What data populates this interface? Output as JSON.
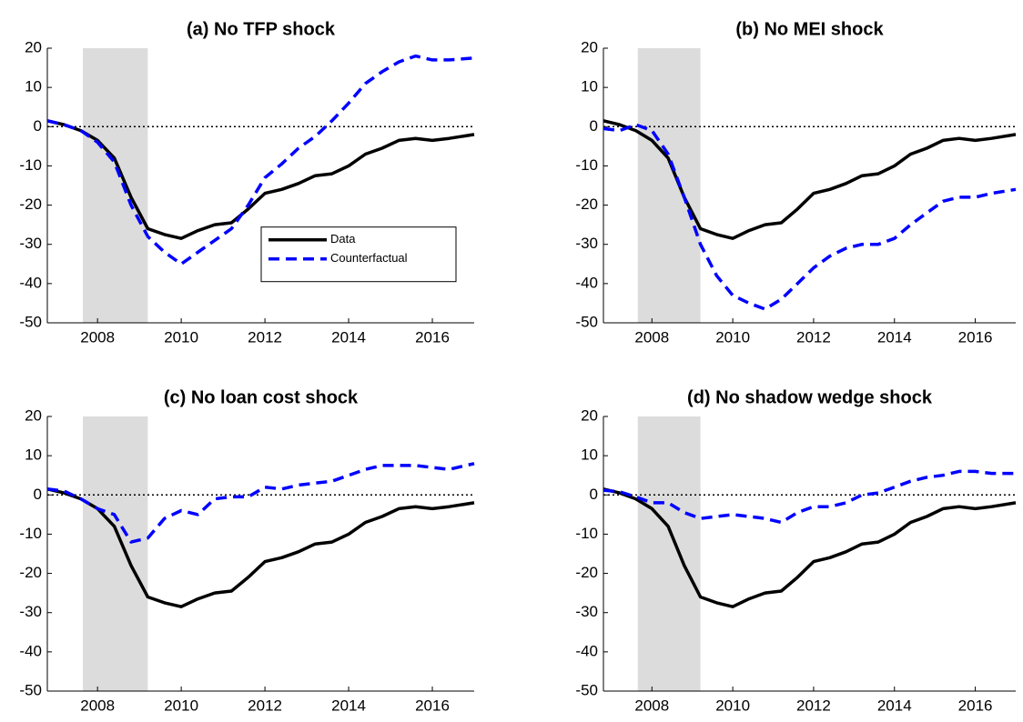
{
  "chart_data": [
    {
      "type": "line",
      "title": "(a) No TFP shock",
      "x": [
        2006.8,
        2007.2,
        2007.6,
        2008.0,
        2008.4,
        2008.8,
        2009.2,
        2009.6,
        2010.0,
        2010.4,
        2010.8,
        2011.2,
        2011.6,
        2012.0,
        2012.4,
        2012.8,
        2013.2,
        2013.6,
        2014.0,
        2014.4,
        2014.8,
        2015.2,
        2015.6,
        2016.0,
        2016.4,
        2017.0
      ],
      "series": [
        {
          "name": "Data",
          "color": "#000000",
          "values": [
            1.5,
            0.5,
            -1,
            -3.5,
            -8,
            -18,
            -26,
            -27.5,
            -28.5,
            -26.5,
            -25,
            -24.5,
            -21,
            -17,
            -16,
            -14.5,
            -12.5,
            -12,
            -10,
            -7,
            -5.5,
            -3.5,
            -3,
            -3.5,
            -3,
            -2
          ]
        },
        {
          "name": "Counterfactual",
          "color": "#0000ff",
          "values": [
            1.5,
            0.5,
            -1,
            -4,
            -9,
            -20,
            -28,
            -32,
            -35,
            -32,
            -29,
            -26,
            -20,
            -13,
            -9.5,
            -5.5,
            -2.5,
            1.5,
            6,
            11,
            14,
            16.5,
            18,
            17,
            17,
            17.5
          ]
        }
      ],
      "xlim": [
        2006.8,
        2017
      ],
      "ylim": [
        -50,
        20
      ],
      "xticks": [
        2008,
        2010,
        2012,
        2014,
        2016
      ],
      "yticks": [
        -50,
        -40,
        -30,
        -20,
        -10,
        0,
        10,
        20
      ],
      "shade": [
        2007.65,
        2009.2
      ],
      "hline": 0,
      "legend": "lower right"
    },
    {
      "type": "line",
      "title": "(b) No MEI shock",
      "x": [
        2006.8,
        2007.2,
        2007.6,
        2008.0,
        2008.4,
        2008.8,
        2009.2,
        2009.6,
        2010.0,
        2010.4,
        2010.8,
        2011.2,
        2011.6,
        2012.0,
        2012.4,
        2012.8,
        2013.2,
        2013.6,
        2014.0,
        2014.4,
        2014.8,
        2015.2,
        2015.6,
        2016.0,
        2016.4,
        2017.0
      ],
      "series": [
        {
          "color": "#000000",
          "values": [
            1.5,
            0.5,
            -1,
            -3.5,
            -8,
            -18,
            -26,
            -27.5,
            -28.5,
            -26.5,
            -25,
            -24.5,
            -21,
            -17,
            -16,
            -14.5,
            -12.5,
            -12,
            -10,
            -7,
            -5.5,
            -3.5,
            -3,
            -3.5,
            -3,
            -2
          ]
        },
        {
          "color": "#0000ff",
          "values": [
            -0.5,
            -1,
            0.5,
            -1,
            -7,
            -18,
            -30,
            -38,
            -43,
            -45,
            -46.5,
            -44,
            -40,
            -36,
            -33,
            -31,
            -30,
            -30,
            -28.5,
            -25,
            -22,
            -19,
            -18,
            -18,
            -17,
            -16
          ]
        }
      ],
      "xlim": [
        2006.8,
        2017
      ],
      "ylim": [
        -50,
        20
      ],
      "xticks": [
        2008,
        2010,
        2012,
        2014,
        2016
      ],
      "yticks": [
        -50,
        -40,
        -30,
        -20,
        -10,
        0,
        10,
        20
      ],
      "shade": [
        2007.65,
        2009.2
      ],
      "hline": 0
    },
    {
      "type": "line",
      "title": "(c) No loan cost shock",
      "x": [
        2006.8,
        2007.2,
        2007.6,
        2008.0,
        2008.4,
        2008.8,
        2009.2,
        2009.6,
        2010.0,
        2010.4,
        2010.8,
        2011.2,
        2011.6,
        2012.0,
        2012.4,
        2012.8,
        2013.2,
        2013.6,
        2014.0,
        2014.4,
        2014.8,
        2015.2,
        2015.6,
        2016.0,
        2016.4,
        2017.0
      ],
      "series": [
        {
          "color": "#000000",
          "values": [
            1.5,
            0.5,
            -1,
            -3.5,
            -8,
            -18,
            -26,
            -27.5,
            -28.5,
            -26.5,
            -25,
            -24.5,
            -21,
            -17,
            -16,
            -14.5,
            -12.5,
            -12,
            -10,
            -7,
            -5.5,
            -3.5,
            -3,
            -3.5,
            -3,
            -2
          ]
        },
        {
          "color": "#0000ff",
          "values": [
            1.5,
            1,
            -1,
            -3.5,
            -5,
            -12,
            -11,
            -6,
            -4,
            -5,
            -1,
            -0.5,
            -0.5,
            2,
            1.5,
            2.5,
            3,
            3.5,
            5,
            6.5,
            7.5,
            7.5,
            7.5,
            7,
            6.5,
            8
          ]
        }
      ],
      "xlim": [
        2006.8,
        2017
      ],
      "ylim": [
        -50,
        20
      ],
      "xticks": [
        2008,
        2010,
        2012,
        2014,
        2016
      ],
      "yticks": [
        -50,
        -40,
        -30,
        -20,
        -10,
        0,
        10,
        20
      ],
      "shade": [
        2007.65,
        2009.2
      ],
      "hline": 0
    },
    {
      "type": "line",
      "title": "(d) No shadow wedge shock",
      "x": [
        2006.8,
        2007.2,
        2007.6,
        2008.0,
        2008.4,
        2008.8,
        2009.2,
        2009.6,
        2010.0,
        2010.4,
        2010.8,
        2011.2,
        2011.6,
        2012.0,
        2012.4,
        2012.8,
        2013.2,
        2013.6,
        2014.0,
        2014.4,
        2014.8,
        2015.2,
        2015.6,
        2016.0,
        2016.4,
        2017.0
      ],
      "series": [
        {
          "color": "#000000",
          "values": [
            1.5,
            0.5,
            -1,
            -3.5,
            -8,
            -18,
            -26,
            -27.5,
            -28.5,
            -26.5,
            -25,
            -24.5,
            -21,
            -17,
            -16,
            -14.5,
            -12.5,
            -12,
            -10,
            -7,
            -5.5,
            -3.5,
            -3,
            -3.5,
            -3,
            -2
          ]
        },
        {
          "color": "#0000ff",
          "values": [
            1.2,
            0.8,
            -0.5,
            -2,
            -2,
            -4.5,
            -6,
            -5.5,
            -5,
            -5.5,
            -6,
            -7,
            -4.5,
            -3,
            -3,
            -2,
            0,
            0.5,
            2,
            3.5,
            4.5,
            5,
            6,
            6,
            5.5,
            5.5
          ]
        }
      ],
      "xlim": [
        2006.8,
        2017
      ],
      "ylim": [
        -50,
        20
      ],
      "xticks": [
        2008,
        2010,
        2012,
        2014,
        2016
      ],
      "yticks": [
        -50,
        -40,
        -30,
        -20,
        -10,
        0,
        10,
        20
      ],
      "shade": [
        2007.65,
        2009.2
      ],
      "hline": 0
    }
  ]
}
